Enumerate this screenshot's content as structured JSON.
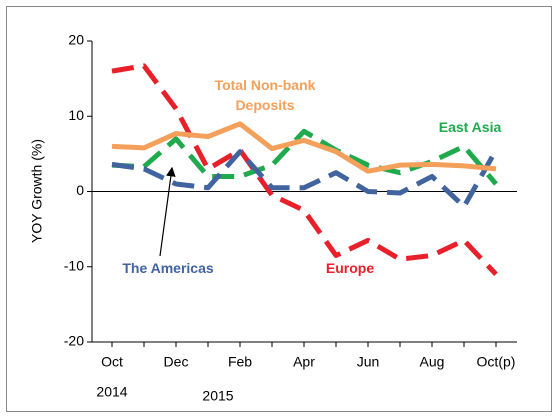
{
  "chart_data": {
    "type": "line",
    "y_label": "YOY Growth (%)",
    "categories": [
      "Oct",
      null,
      "Dec",
      null,
      "Feb",
      null,
      "Apr",
      null,
      "Jun",
      null,
      "Aug",
      null,
      "Oct(p)"
    ],
    "ylim": [
      -20,
      20
    ],
    "yticks": [
      -20,
      -10,
      0,
      10,
      20
    ],
    "annotations": [
      "2014",
      "2015"
    ],
    "series": [
      {
        "name": "Europe",
        "color": "#e8202a",
        "dashed": true,
        "values": [
          16,
          16.7,
          11,
          3,
          5.5,
          -0.5,
          -2.5,
          -8.5,
          -6.5,
          -9,
          -8.5,
          -6.5,
          -11
        ]
      },
      {
        "name": "East Asia",
        "color": "#1fab4d",
        "dashed": true,
        "values": [
          3.5,
          3.3,
          7,
          2,
          2,
          3.5,
          8,
          5.5,
          3.5,
          2.5,
          4,
          6,
          1
        ]
      },
      {
        "name": "The Americas",
        "color": "#41649f",
        "dashed": true,
        "values": [
          3.6,
          3,
          1,
          0.5,
          5.3,
          0.5,
          0.5,
          2.5,
          0,
          -0.2,
          2,
          -2,
          5.5
        ]
      },
      {
        "name": "Total Non-bank Deposits",
        "color": "#f5a05a",
        "dashed": false,
        "values": [
          6,
          5.8,
          7.7,
          7.3,
          9,
          5.7,
          6.8,
          5.3,
          2.7,
          3.5,
          3.6,
          3.4,
          3
        ]
      }
    ]
  }
}
